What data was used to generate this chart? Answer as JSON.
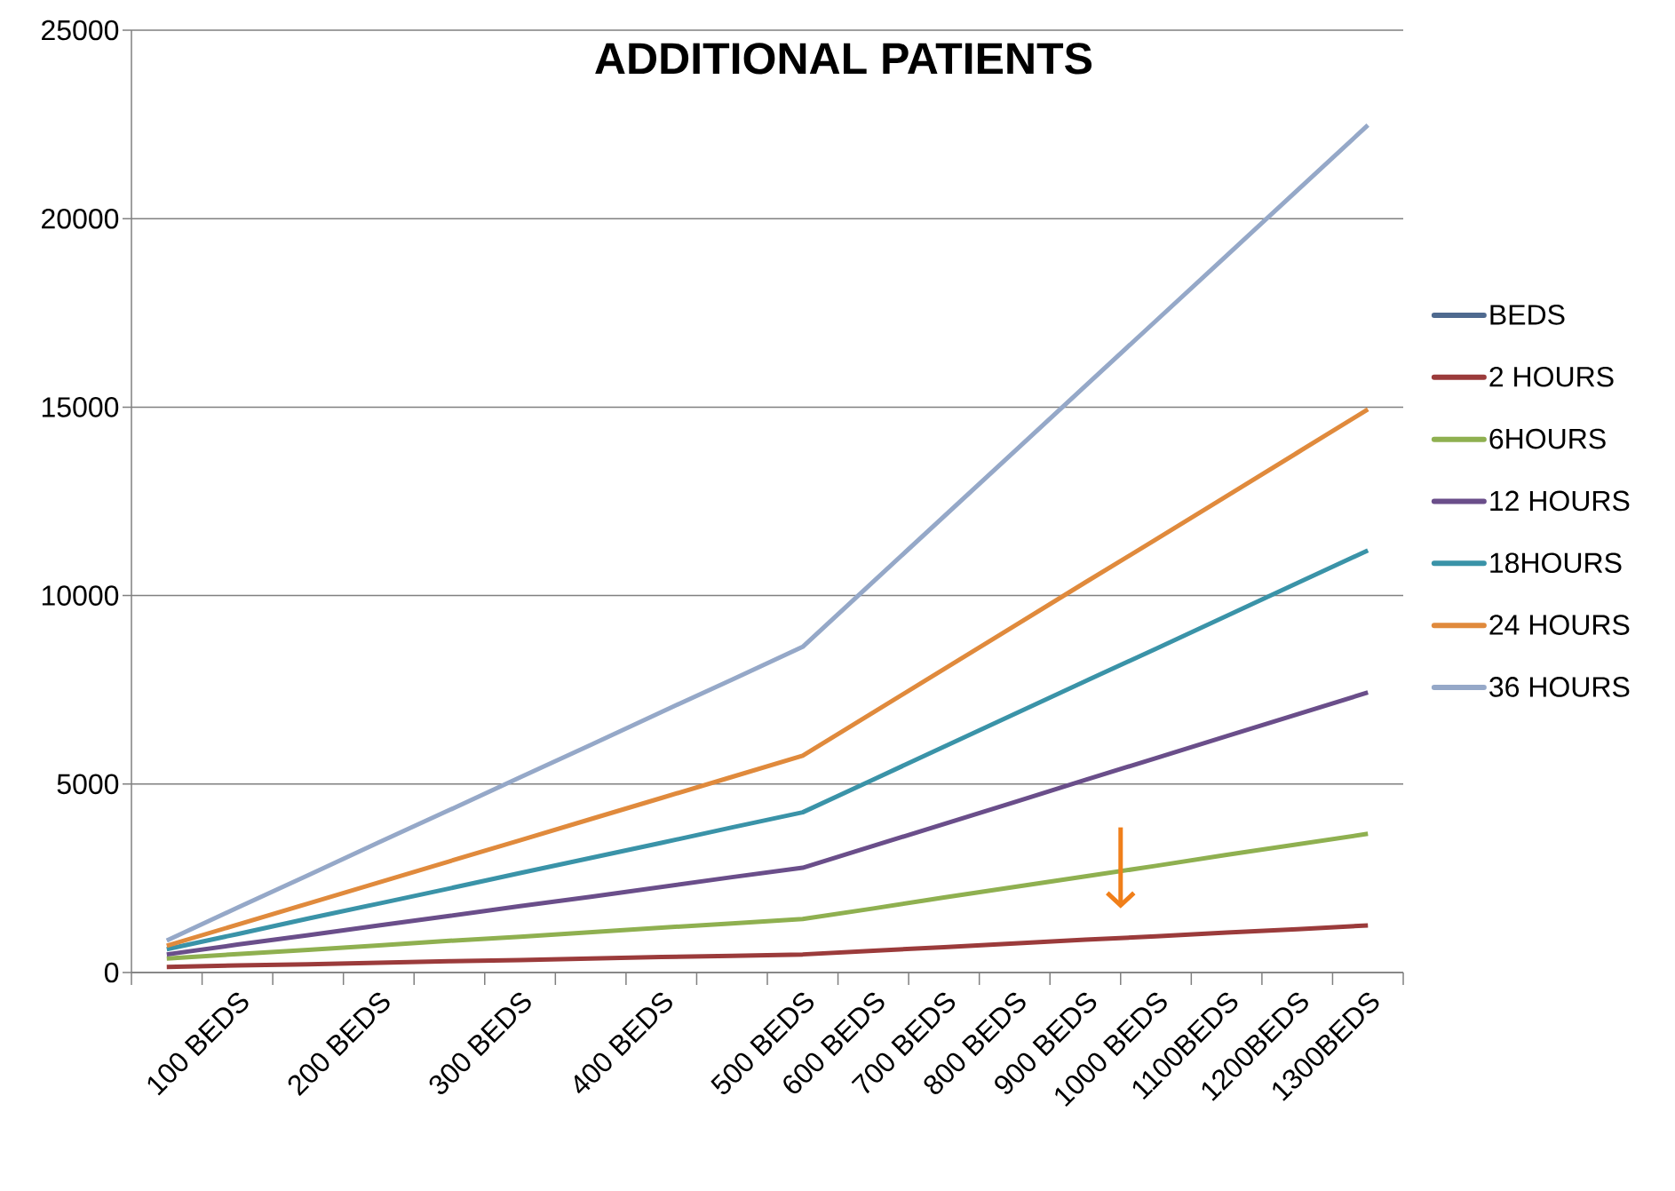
{
  "chart_data": {
    "type": "line",
    "title": "**ADDITIONAL PATIENTS**",
    "categories": [
      null,
      "100 BEDS",
      null,
      "200 BEDS",
      null,
      "300 BEDS",
      null,
      "400 BEDS",
      null,
      "500 BEDS",
      "600 BEDS",
      "700 BEDS",
      "800 BEDS",
      "900 BEDS",
      "1000 BEDS",
      "1100BEDS",
      "1200BEDS",
      "1300BEDS"
    ],
    "series": [
      {
        "name": "BEDS",
        "color": "#4f6a8f",
        "values": [
          null,
          null,
          null,
          null,
          null,
          null,
          null,
          null,
          null,
          null,
          null,
          null,
          null,
          null,
          null,
          null,
          null,
          null
        ]
      },
      {
        "name": "2 HOURS",
        "color": "#9b3b3b",
        "values": [
          150,
          190,
          220,
          260,
          300,
          330,
          370,
          410,
          440,
          480,
          580,
          670,
          770,
          870,
          960,
          1060,
          1150,
          1250
        ]
      },
      {
        "name": "6HOURS",
        "color": "#8fb050",
        "values": [
          370,
          490,
          600,
          720,
          840,
          950,
          1070,
          1190,
          1300,
          1420,
          1700,
          1990,
          2270,
          2550,
          2830,
          3120,
          3400,
          3680
        ]
      },
      {
        "name": "12 HOURS",
        "color": "#6a4e8a",
        "values": [
          480,
          740,
          990,
          1250,
          1500,
          1760,
          2010,
          2270,
          2530,
          2780,
          3360,
          3940,
          4520,
          5110,
          5690,
          6270,
          6850,
          7430
        ]
      },
      {
        "name": "18HOURS",
        "color": "#3a93a8",
        "values": [
          620,
          1020,
          1430,
          1830,
          2230,
          2640,
          3040,
          3440,
          3850,
          4250,
          5120,
          5990,
          6860,
          7730,
          8590,
          9460,
          10330,
          11200
        ]
      },
      {
        "name": "24 HOURS",
        "color": "#e08a3c",
        "values": [
          710,
          1270,
          1830,
          2390,
          2950,
          3510,
          4070,
          4630,
          5190,
          5750,
          6900,
          8050,
          9200,
          10350,
          11490,
          12640,
          13790,
          14940
        ]
      },
      {
        "name": "36 HOURS",
        "color": "#95a8c8",
        "values": [
          850,
          1720,
          2580,
          3450,
          4310,
          5180,
          6040,
          6910,
          7770,
          8640,
          10370,
          12100,
          13830,
          15560,
          17290,
          19020,
          20750,
          22480
        ]
      }
    ],
    "ylim": [
      0,
      25000
    ],
    "yticks": [
      0,
      5000,
      10000,
      15000,
      20000,
      25000
    ],
    "grid": "y",
    "legend": "right",
    "marker": "none",
    "line_style": "solid"
  }
}
